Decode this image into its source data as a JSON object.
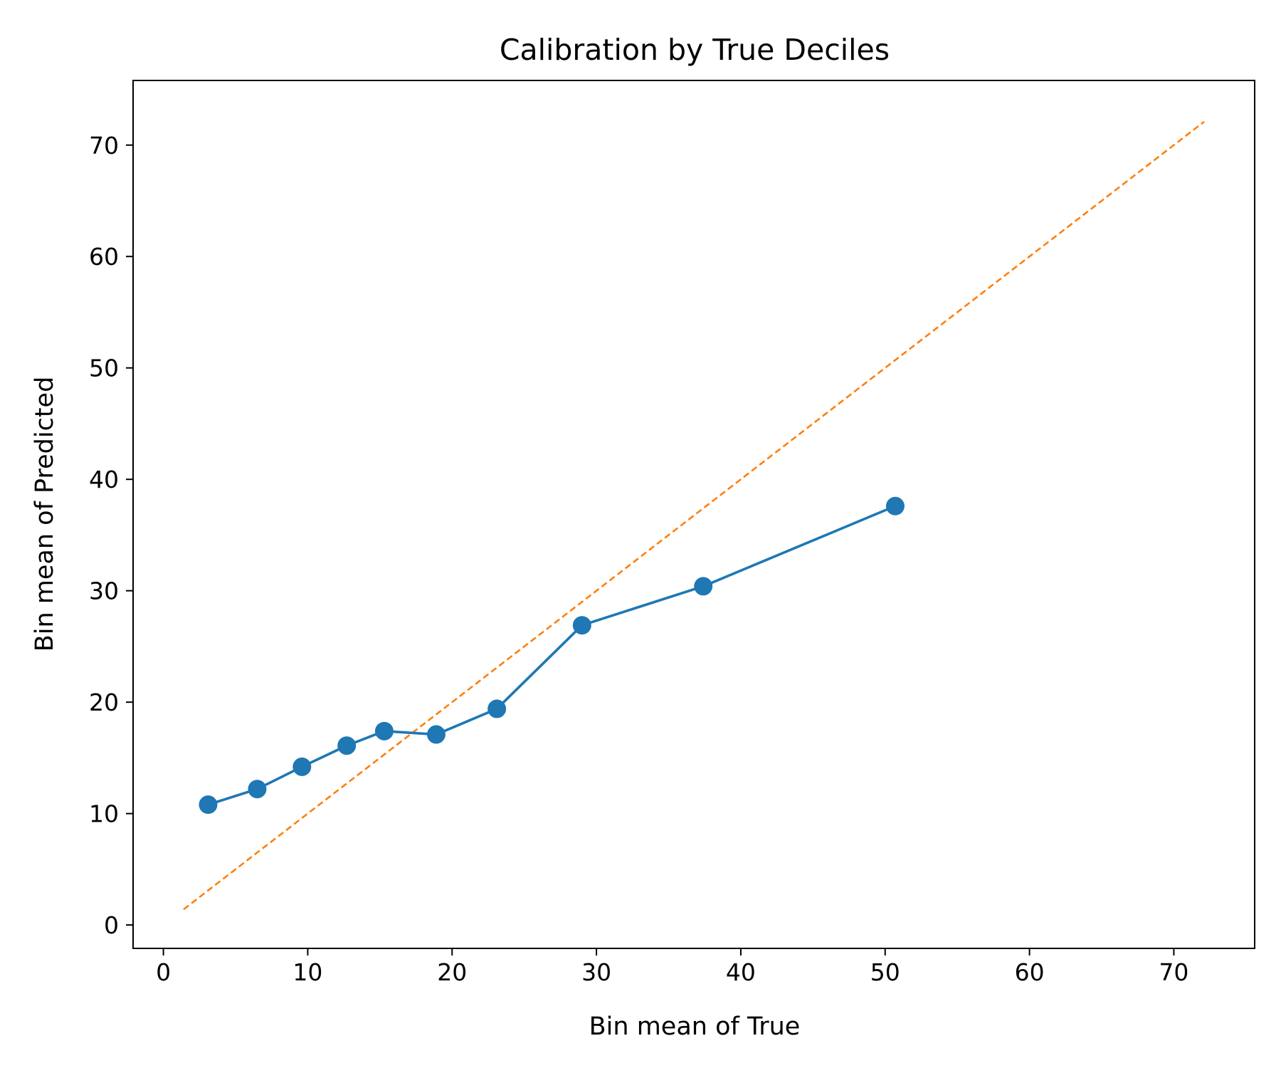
{
  "chart_data": {
    "type": "line",
    "title": "Calibration by True Deciles",
    "xlabel": "Bin mean of True",
    "ylabel": "Bin mean of Predicted",
    "xlim": [
      -2.1,
      75.6
    ],
    "ylim": [
      -2.1,
      75.8
    ],
    "xticks": [
      0,
      10,
      20,
      30,
      40,
      50,
      60,
      70
    ],
    "yticks": [
      0,
      10,
      20,
      30,
      40,
      50,
      60,
      70
    ],
    "grid": false,
    "series": [
      {
        "color": "#1f77b4",
        "style": "solid",
        "marker": "circle",
        "x": [
          3.1,
          6.5,
          9.6,
          12.7,
          15.3,
          18.9,
          23.1,
          29.0,
          37.4,
          50.7
        ],
        "y": [
          10.8,
          12.2,
          14.2,
          16.1,
          17.4,
          17.1,
          19.4,
          26.9,
          30.4,
          37.6
        ]
      },
      {
        "color": "#ff7f0e",
        "style": "dashed",
        "marker": "none",
        "x": [
          1.4,
          72.1
        ],
        "y": [
          1.4,
          72.1
        ]
      }
    ]
  }
}
